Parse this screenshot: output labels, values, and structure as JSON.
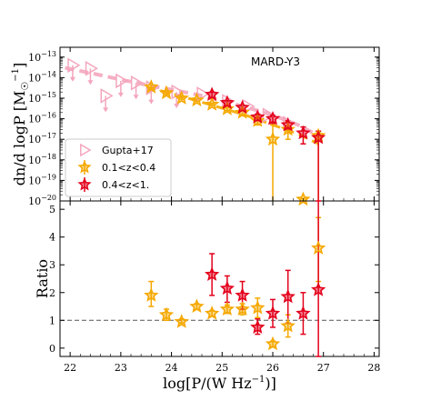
{
  "chart_data": [
    {
      "panel": "top",
      "type": "scatter",
      "annotation": "MARD-Y3",
      "ylabel": "dn/d logP [M$_\\odot^{-1}$]",
      "yscale": "log",
      "ylim": [
        1e-20,
        3e-13
      ],
      "xlim": [
        21.8,
        28.1
      ],
      "yticklabels": [
        "10^-20",
        "10^-19",
        "10^-18",
        "10^-17",
        "10^-16",
        "10^-15",
        "10^-14",
        "10^-13"
      ],
      "legend_position": "lower-left",
      "series": [
        {
          "name": "Gupta+17",
          "marker": "triangle-right-open",
          "color": "#f4a6bd",
          "points": [
            {
              "x": 22.05,
              "y": 4e-14,
              "upper_limit": true
            },
            {
              "x": 22.4,
              "y": 2.8e-14,
              "upper_limit": true
            },
            {
              "x": 22.7,
              "y": 1.3e-15,
              "upper_limit": true
            },
            {
              "x": 23.0,
              "y": 7e-15,
              "upper_limit": true
            },
            {
              "x": 23.3,
              "y": 5.5e-15,
              "upper_limit": true
            },
            {
              "x": 23.6,
              "y": 3.2e-15,
              "upper_limit": true
            },
            {
              "x": 24.1,
              "y": 2e-15,
              "upper_limit": true
            },
            {
              "x": 24.6,
              "y": 1.6e-15,
              "upper_limit": false
            },
            {
              "x": 25.1,
              "y": 7e-16,
              "upper_limit": false
            },
            {
              "x": 25.5,
              "y": 4e-16,
              "upper_limit": false
            },
            {
              "x": 25.9,
              "y": 1.5e-16,
              "upper_limit": false
            },
            {
              "x": 26.3,
              "y": 6e-17,
              "upper_limit": false
            }
          ],
          "model_curve": {
            "style": "dashed",
            "x": [
              21.9,
              22.5,
              23.0,
              23.5,
              24.0,
              24.5,
              25.0,
              25.5,
              26.0,
              26.5,
              26.9
            ],
            "y": [
              3e-14,
              1.5e-14,
              8e-15,
              4.5e-15,
              2.6e-15,
              1.5e-15,
              7.5e-16,
              3.5e-16,
              1.5e-16,
              5e-17,
              1.5e-17
            ]
          }
        },
        {
          "name": "0.1<z<0.4",
          "marker": "star",
          "color": "#f5a800",
          "points": [
            {
              "x": 23.6,
              "y": 3.5e-15,
              "ylo": 2.6e-15,
              "yhi": 4.5e-15
            },
            {
              "x": 23.9,
              "y": 1.8e-15,
              "ylo": 1.5e-15,
              "yhi": 2.2e-15
            },
            {
              "x": 24.2,
              "y": 1e-15,
              "ylo": 9e-16,
              "yhi": 1.1e-15
            },
            {
              "x": 24.5,
              "y": 8e-16,
              "ylo": 7e-16,
              "yhi": 9e-16
            },
            {
              "x": 24.8,
              "y": 5e-16,
              "ylo": 4.5e-16,
              "yhi": 5.6e-16
            },
            {
              "x": 25.1,
              "y": 3e-16,
              "ylo": 2.5e-16,
              "yhi": 3.5e-16
            },
            {
              "x": 25.4,
              "y": 2e-16,
              "ylo": 1.6e-16,
              "yhi": 2.5e-16
            },
            {
              "x": 25.7,
              "y": 8e-17,
              "ylo": 5e-17,
              "yhi": 1.2e-16
            },
            {
              "x": 26.0,
              "y": 1e-17,
              "ylo": 1e-20,
              "yhi": 5e-17
            },
            {
              "x": 26.3,
              "y": 3e-17,
              "ylo": 1e-17,
              "yhi": 7e-17
            },
            {
              "x": 26.6,
              "y": 1.2e-20,
              "ylo": 1e-20,
              "yhi": 1.3e-20
            },
            {
              "x": 26.9,
              "y": 1.5e-17,
              "ylo": 1e-20,
              "yhi": 2.4e-17
            }
          ],
          "model_curve": {
            "style": "dashed",
            "x": [
              23.5,
              24.0,
              24.5,
              25.0,
              25.5,
              26.0,
              26.5,
              26.9
            ],
            "y": [
              3.5e-15,
              1.7e-15,
              7.5e-16,
              3.3e-16,
              1.4e-16,
              5e-17,
              1.8e-17,
              6e-18
            ]
          }
        },
        {
          "name": "0.4<z<1.",
          "marker": "star",
          "color": "#e3001b",
          "points": [
            {
              "x": 24.8,
              "y": 1.5e-15,
              "ylo": 1.1e-15,
              "yhi": 2e-15
            },
            {
              "x": 25.1,
              "y": 6e-16,
              "ylo": 4.5e-16,
              "yhi": 7.5e-16
            },
            {
              "x": 25.4,
              "y": 3.5e-16,
              "ylo": 2.6e-16,
              "yhi": 4.5e-16
            },
            {
              "x": 25.7,
              "y": 1.2e-16,
              "ylo": 8e-17,
              "yhi": 1.7e-16
            },
            {
              "x": 26.0,
              "y": 1e-16,
              "ylo": 6e-17,
              "yhi": 1.5e-16
            },
            {
              "x": 26.3,
              "y": 5e-17,
              "ylo": 3e-17,
              "yhi": 8e-17
            },
            {
              "x": 26.6,
              "y": 2e-17,
              "ylo": 6e-18,
              "yhi": 4e-17
            },
            {
              "x": 26.9,
              "y": 1.2e-17,
              "ylo": 1e-20,
              "yhi": 2.5e-17
            }
          ]
        }
      ]
    },
    {
      "panel": "bottom",
      "type": "scatter",
      "xlabel": "log[P/(W Hz$^{-1}$)]",
      "ylabel": "Ratio",
      "xlim": [
        21.8,
        28.1
      ],
      "ylim": [
        -0.3,
        5.3
      ],
      "xticks": [
        22,
        23,
        24,
        25,
        26,
        27,
        28
      ],
      "yticks": [
        0,
        1,
        2,
        3,
        4,
        5
      ],
      "reference_line": {
        "y": 1,
        "style": "dashed",
        "color": "#555555"
      },
      "series": [
        {
          "name": "0.1<z<0.4",
          "marker": "star",
          "color": "#f5a800",
          "points": [
            {
              "x": 23.6,
              "y": 1.9,
              "ylo": 1.5,
              "yhi": 2.4
            },
            {
              "x": 23.9,
              "y": 1.2,
              "ylo": 1.0,
              "yhi": 1.4
            },
            {
              "x": 24.2,
              "y": 0.95,
              "ylo": 0.9,
              "yhi": 1.05
            },
            {
              "x": 24.5,
              "y": 1.5,
              "ylo": 1.4,
              "yhi": 1.6
            },
            {
              "x": 24.8,
              "y": 1.25,
              "ylo": 1.15,
              "yhi": 1.35
            },
            {
              "x": 25.1,
              "y": 1.4,
              "ylo": 1.25,
              "yhi": 1.55
            },
            {
              "x": 25.4,
              "y": 1.4,
              "ylo": 1.2,
              "yhi": 1.6
            },
            {
              "x": 25.7,
              "y": 1.45,
              "ylo": 1.1,
              "yhi": 1.8
            },
            {
              "x": 26.0,
              "y": 0.15,
              "ylo": 0.05,
              "yhi": 0.25
            },
            {
              "x": 26.3,
              "y": 0.8,
              "ylo": 0.4,
              "yhi": 1.2
            },
            {
              "x": 26.9,
              "y": 3.6,
              "ylo": 2.4,
              "yhi": 4.7
            }
          ]
        },
        {
          "name": "0.4<z<1.",
          "marker": "star",
          "color": "#e3001b",
          "points": [
            {
              "x": 24.8,
              "y": 2.65,
              "ylo": 1.9,
              "yhi": 3.4
            },
            {
              "x": 25.1,
              "y": 2.15,
              "ylo": 1.65,
              "yhi": 2.6
            },
            {
              "x": 25.4,
              "y": 1.9,
              "ylo": 1.4,
              "yhi": 2.4
            },
            {
              "x": 25.7,
              "y": 0.75,
              "ylo": 0.5,
              "yhi": 1.05
            },
            {
              "x": 26.0,
              "y": 1.25,
              "ylo": 0.75,
              "yhi": 1.75
            },
            {
              "x": 26.3,
              "y": 1.85,
              "ylo": 0.9,
              "yhi": 2.8
            },
            {
              "x": 26.6,
              "y": 1.25,
              "ylo": 0.5,
              "yhi": 2.0
            },
            {
              "x": 26.9,
              "y": 2.1,
              "ylo": -0.4,
              "yhi": 5.3
            }
          ]
        }
      ]
    }
  ]
}
